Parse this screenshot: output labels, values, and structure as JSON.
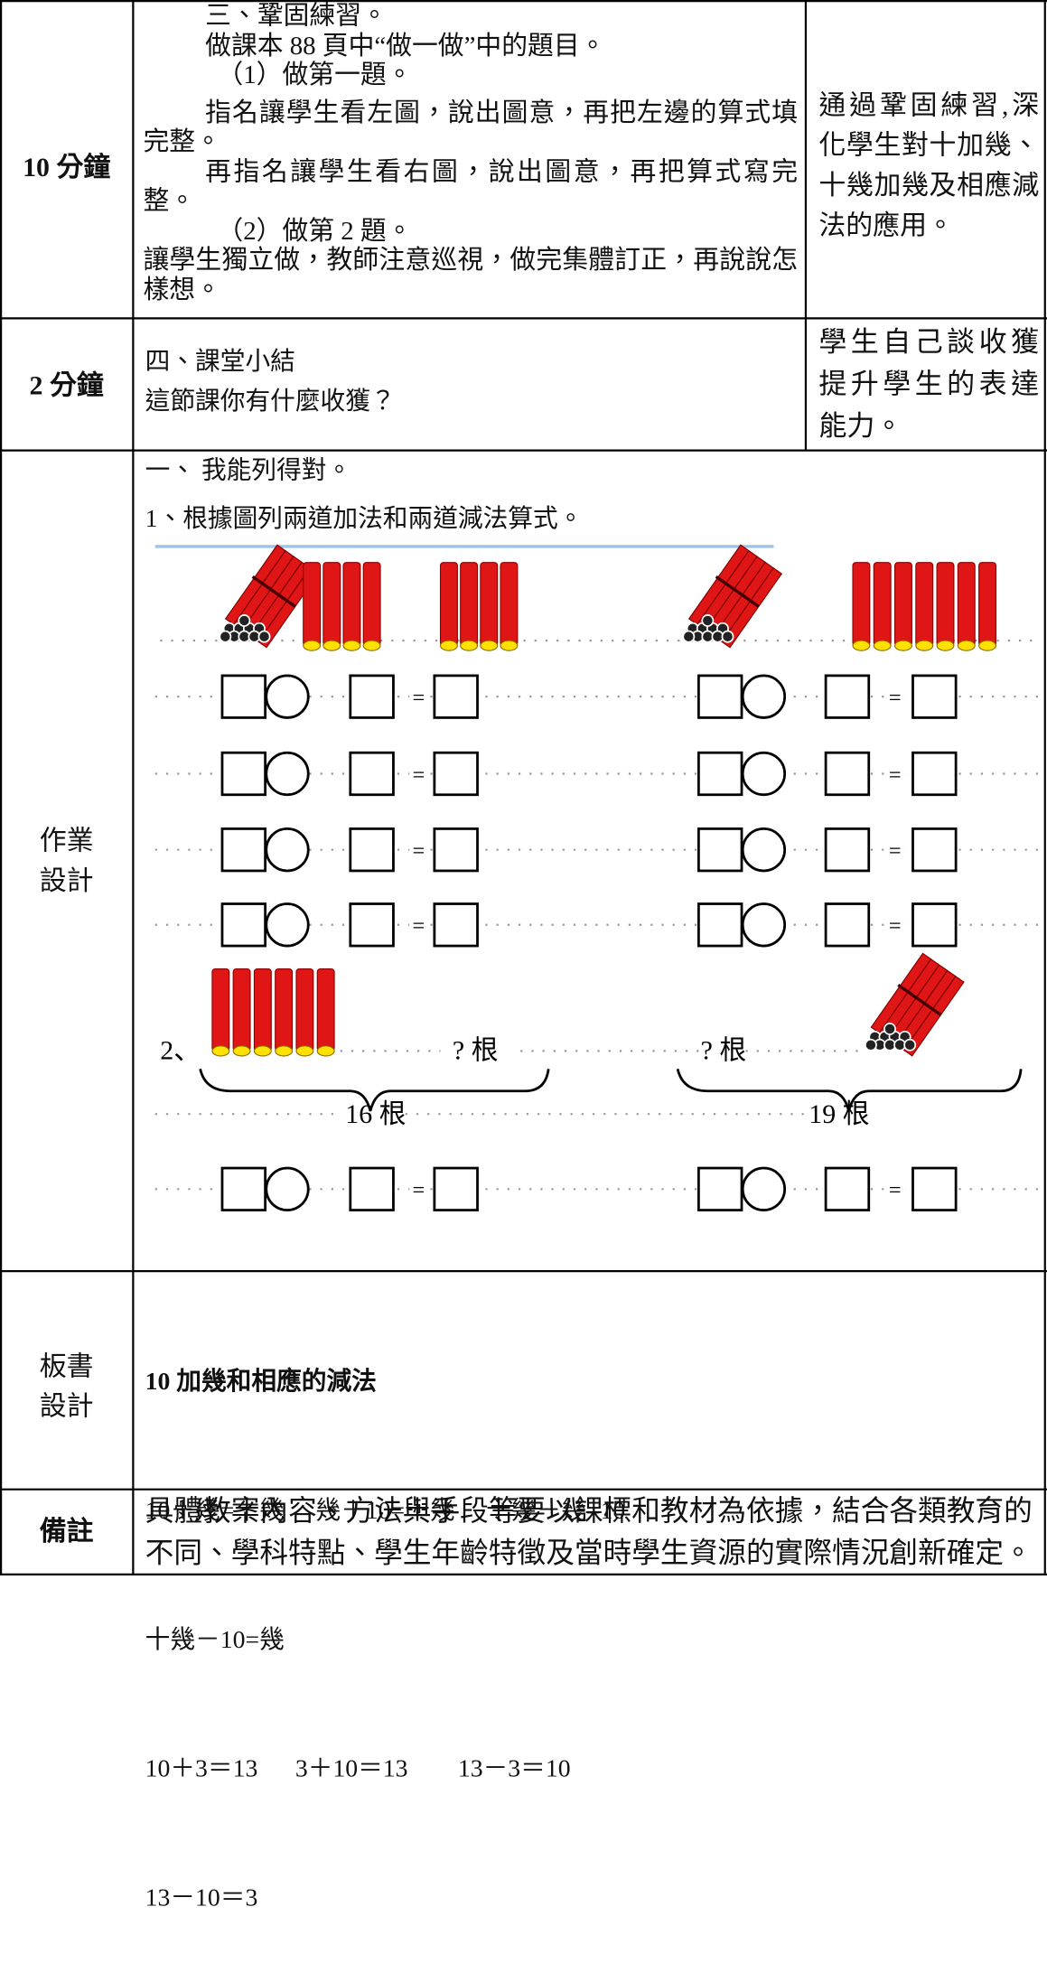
{
  "rows": [
    {
      "time": "10 分鐘",
      "content": [
        "三、鞏固練習。",
        "做課本 88 頁中“做一做”中的題目。",
        "（1）做第一題。",
        "指名讓學生看左圖，說出圖意，再把左邊的算式填完整。",
        "再指名讓學生看右圖，說出圖意，再把算式寫完整。",
        "（2）做第 2 題。",
        "讓學生獨立做，教師注意巡視，做完集體訂正，再說說怎樣想。"
      ],
      "purpose": "通過鞏固練習,深化學生對十加幾、十幾加幾及相應減法的應用。"
    },
    {
      "time": "2 分鐘",
      "content": [
        "四、課堂小結",
        "這節課你有什麼收獲？"
      ],
      "purpose": "學生自己談收獲提升學生的表達能力。"
    }
  ],
  "homework": {
    "label": [
      "作業",
      "設計"
    ],
    "lines": [
      "一、 我能列得對。",
      "1、根據圖列兩道加法和兩道減法算式。"
    ],
    "figure": {
      "question_2": "2、",
      "unknown_left": "? 根",
      "unknown_right": "? 根",
      "left_total": "16 根",
      "right_total": "19 根",
      "equals": "="
    }
  },
  "board": {
    "label": [
      "板書",
      "設計"
    ],
    "title": "10 加幾和相應的減法",
    "lines": [
      "10＋幾=十幾     幾＋10=十幾     十幾－幾=10",
      "十幾－10=幾",
      "10＋3＝13      3＋10＝13        13－3＝10",
      "13－10＝3"
    ]
  },
  "note": {
    "label": "備註",
    "lines": [
      "具體教案內容、方法與手段等要以課標和教材為依據，結合各類教育的",
      "不同、學科特點、學生年齡特徵及當時學生資源的實際情況創新確定。"
    ]
  }
}
